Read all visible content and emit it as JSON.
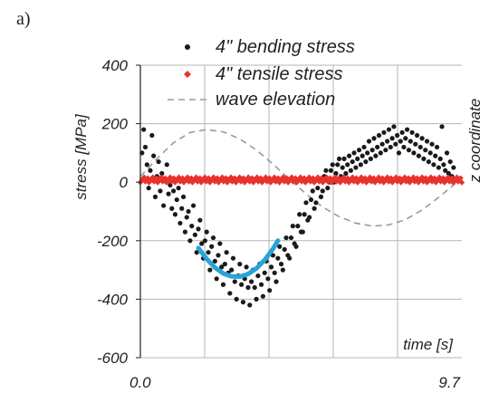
{
  "panel_label": "a)",
  "chart_data": {
    "type": "scatter",
    "ylabel": "stress [MPa]",
    "xlabel": "time [s]",
    "y2label": "z coordinate",
    "xlim": [
      0,
      9.7
    ],
    "ylim": [
      -600,
      400
    ],
    "x_ticks": [
      {
        "value": 0,
        "label": "0.0"
      },
      {
        "value": 9.7,
        "label": "9.7"
      }
    ],
    "y_ticks": [
      {
        "value": 400,
        "label": "400"
      },
      {
        "value": 200,
        "label": "200"
      },
      {
        "value": 0,
        "label": "0"
      },
      {
        "value": -200,
        "label": "-200"
      },
      {
        "value": -400,
        "label": "-400"
      },
      {
        "value": -600,
        "label": "-600"
      }
    ],
    "vertical_gridlines_x": [
      1.94,
      3.88,
      5.82,
      7.76
    ],
    "legend_position": "top",
    "colors": {
      "bending": "#1a1a1a",
      "tensile": "#e8322e",
      "wave": "#9a9a9a",
      "fit": "#29a3d8"
    },
    "series": [
      {
        "name": "4\" bending stress",
        "marker": "dot",
        "points": [
          [
            0.05,
            100
          ],
          [
            0.1,
            180
          ],
          [
            0.15,
            120
          ],
          [
            0.2,
            60
          ],
          [
            0.25,
            -20
          ],
          [
            0.3,
            40
          ],
          [
            0.35,
            160
          ],
          [
            0.4,
            90
          ],
          [
            0.45,
            -50
          ],
          [
            0.5,
            20
          ],
          [
            0.55,
            70
          ],
          [
            0.6,
            -30
          ],
          [
            0.65,
            30
          ],
          [
            0.7,
            -80
          ],
          [
            0.75,
            10
          ],
          [
            0.8,
            60
          ],
          [
            0.85,
            -40
          ],
          [
            0.9,
            -10
          ],
          [
            0.95,
            -90
          ],
          [
            1.0,
            -30
          ],
          [
            1.05,
            -110
          ],
          [
            1.1,
            -60
          ],
          [
            1.15,
            -20
          ],
          [
            1.2,
            -140
          ],
          [
            1.25,
            -90
          ],
          [
            1.3,
            -50
          ],
          [
            1.35,
            -170
          ],
          [
            1.4,
            -120
          ],
          [
            1.45,
            -100
          ],
          [
            1.5,
            -200
          ],
          [
            1.55,
            -150
          ],
          [
            1.6,
            -80
          ],
          [
            1.65,
            -180
          ],
          [
            1.7,
            -240
          ],
          [
            1.75,
            -160
          ],
          [
            1.8,
            -130
          ],
          [
            1.85,
            -210
          ],
          [
            1.9,
            -260
          ],
          [
            1.95,
            -200
          ],
          [
            2.0,
            -170
          ],
          [
            2.05,
            -240
          ],
          [
            2.1,
            -300
          ],
          [
            2.15,
            -220
          ],
          [
            2.2,
            -190
          ],
          [
            2.25,
            -270
          ],
          [
            2.3,
            -330
          ],
          [
            2.35,
            -250
          ],
          [
            2.4,
            -210
          ],
          [
            2.45,
            -290
          ],
          [
            2.5,
            -350
          ],
          [
            2.55,
            -280
          ],
          [
            2.6,
            -240
          ],
          [
            2.65,
            -310
          ],
          [
            2.7,
            -380
          ],
          [
            2.75,
            -300
          ],
          [
            2.8,
            -260
          ],
          [
            2.85,
            -340
          ],
          [
            2.9,
            -400
          ],
          [
            2.95,
            -320
          ],
          [
            3.0,
            -280
          ],
          [
            3.05,
            -350
          ],
          [
            3.1,
            -410
          ],
          [
            3.15,
            -330
          ],
          [
            3.2,
            -290
          ],
          [
            3.25,
            -360
          ],
          [
            3.3,
            -420
          ],
          [
            3.35,
            -340
          ],
          [
            3.4,
            -300
          ],
          [
            3.45,
            -360
          ],
          [
            3.5,
            -400
          ],
          [
            3.55,
            -320
          ],
          [
            3.6,
            -280
          ],
          [
            3.65,
            -350
          ],
          [
            3.7,
            -390
          ],
          [
            3.75,
            -310
          ],
          [
            3.8,
            -270
          ],
          [
            3.85,
            -330
          ],
          [
            3.9,
            -370
          ],
          [
            3.95,
            -290
          ],
          [
            4.0,
            -250
          ],
          [
            4.05,
            -310
          ],
          [
            4.1,
            -340
          ],
          [
            4.15,
            -260
          ],
          [
            4.2,
            -220
          ],
          [
            4.25,
            -280
          ],
          [
            4.3,
            -300
          ],
          [
            4.35,
            -230
          ],
          [
            4.4,
            -190
          ],
          [
            4.45,
            -250
          ],
          [
            4.5,
            -260
          ],
          [
            4.55,
            -190
          ],
          [
            4.6,
            -150
          ],
          [
            4.65,
            -210
          ],
          [
            4.7,
            -220
          ],
          [
            4.75,
            -150
          ],
          [
            4.8,
            -110
          ],
          [
            4.85,
            -170
          ],
          [
            4.9,
            -170
          ],
          [
            4.95,
            -110
          ],
          [
            5.0,
            -70
          ],
          [
            5.05,
            -130
          ],
          [
            5.1,
            -120
          ],
          [
            5.15,
            -60
          ],
          [
            5.2,
            -30
          ],
          [
            5.25,
            -90
          ],
          [
            5.3,
            -70
          ],
          [
            5.35,
            -20
          ],
          [
            5.4,
            10
          ],
          [
            5.45,
            -50
          ],
          [
            5.5,
            -30
          ],
          [
            5.55,
            20
          ],
          [
            5.6,
            40
          ],
          [
            5.65,
            -20
          ],
          [
            5.7,
            0
          ],
          [
            5.75,
            40
          ],
          [
            5.8,
            60
          ],
          [
            5.85,
            0
          ],
          [
            5.9,
            30
          ],
          [
            5.95,
            60
          ],
          [
            6.0,
            80
          ],
          [
            6.05,
            20
          ],
          [
            6.1,
            50
          ],
          [
            6.15,
            80
          ],
          [
            6.2,
            30
          ],
          [
            6.25,
            60
          ],
          [
            6.3,
            90
          ],
          [
            6.35,
            40
          ],
          [
            6.4,
            70
          ],
          [
            6.45,
            100
          ],
          [
            6.5,
            50
          ],
          [
            6.55,
            80
          ],
          [
            6.6,
            110
          ],
          [
            6.65,
            60
          ],
          [
            6.7,
            90
          ],
          [
            6.75,
            120
          ],
          [
            6.8,
            70
          ],
          [
            6.85,
            100
          ],
          [
            6.9,
            140
          ],
          [
            6.95,
            80
          ],
          [
            7.0,
            110
          ],
          [
            7.05,
            150
          ],
          [
            7.1,
            90
          ],
          [
            7.15,
            120
          ],
          [
            7.2,
            160
          ],
          [
            7.25,
            100
          ],
          [
            7.3,
            130
          ],
          [
            7.35,
            170
          ],
          [
            7.4,
            110
          ],
          [
            7.45,
            140
          ],
          [
            7.5,
            180
          ],
          [
            7.55,
            120
          ],
          [
            7.6,
            150
          ],
          [
            7.65,
            190
          ],
          [
            7.7,
            130
          ],
          [
            7.75,
            160
          ],
          [
            7.8,
            100
          ],
          [
            7.85,
            140
          ],
          [
            7.9,
            170
          ],
          [
            7.95,
            120
          ],
          [
            8.0,
            150
          ],
          [
            8.05,
            180
          ],
          [
            8.1,
            110
          ],
          [
            8.15,
            140
          ],
          [
            8.2,
            170
          ],
          [
            8.25,
            100
          ],
          [
            8.3,
            130
          ],
          [
            8.35,
            160
          ],
          [
            8.4,
            90
          ],
          [
            8.45,
            120
          ],
          [
            8.5,
            150
          ],
          [
            8.55,
            80
          ],
          [
            8.6,
            110
          ],
          [
            8.65,
            140
          ],
          [
            8.7,
            70
          ],
          [
            8.75,
            100
          ],
          [
            8.8,
            130
          ],
          [
            8.85,
            60
          ],
          [
            8.9,
            90
          ],
          [
            8.95,
            120
          ],
          [
            9.0,
            50
          ],
          [
            9.05,
            80
          ],
          [
            9.1,
            190
          ],
          [
            9.15,
            60
          ],
          [
            9.2,
            40
          ],
          [
            9.25,
            100
          ],
          [
            9.3,
            30
          ],
          [
            9.35,
            70
          ],
          [
            9.4,
            20
          ],
          [
            9.45,
            50
          ],
          [
            9.5,
            10
          ]
        ]
      },
      {
        "name": "4\" tensile stress",
        "marker": "diamond",
        "constant_value": 8,
        "x_range": [
          0,
          9.7
        ],
        "count": 260
      },
      {
        "name": "wave elevation",
        "marker": "dashed-line",
        "points": [
          [
            0,
            20
          ],
          [
            0.5,
            80
          ],
          [
            1.0,
            135
          ],
          [
            1.5,
            170
          ],
          [
            2.0,
            180
          ],
          [
            2.5,
            172
          ],
          [
            3.0,
            148
          ],
          [
            3.5,
            110
          ],
          [
            4.0,
            62
          ],
          [
            4.5,
            10
          ],
          [
            5.0,
            -40
          ],
          [
            5.5,
            -85
          ],
          [
            6.0,
            -118
          ],
          [
            6.5,
            -140
          ],
          [
            7.0,
            -150
          ],
          [
            7.5,
            -146
          ],
          [
            8.0,
            -128
          ],
          [
            8.5,
            -95
          ],
          [
            9.0,
            -52
          ],
          [
            9.5,
            -5
          ],
          [
            9.7,
            10
          ]
        ]
      },
      {
        "name": "",
        "marker": "fit-curve",
        "points": [
          [
            1.75,
            -225
          ],
          [
            2.0,
            -262
          ],
          [
            2.25,
            -292
          ],
          [
            2.5,
            -312
          ],
          [
            2.75,
            -322
          ],
          [
            3.0,
            -323
          ],
          [
            3.25,
            -314
          ],
          [
            3.5,
            -295
          ],
          [
            3.75,
            -266
          ],
          [
            4.0,
            -228
          ],
          [
            4.15,
            -200
          ]
        ]
      }
    ]
  }
}
